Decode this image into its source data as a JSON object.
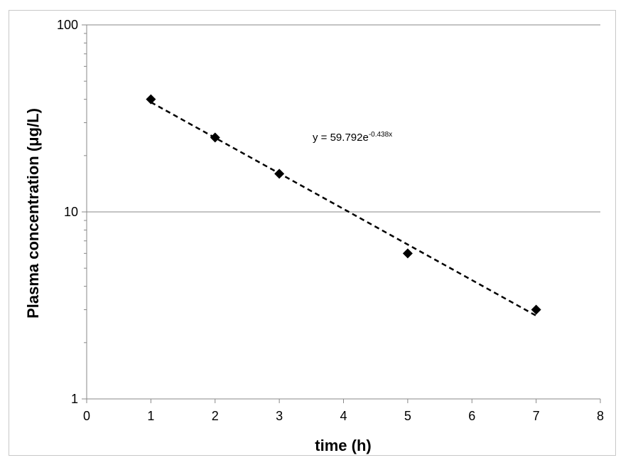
{
  "chart_data": {
    "type": "scatter",
    "xlabel": "time (h)",
    "ylabel": "Plasma concentration (μg/L)",
    "xlim": [
      0,
      8
    ],
    "ylim": [
      1,
      100
    ],
    "yscale": "log",
    "grid": "horizontal major gridlines",
    "legend": "none",
    "x_ticks": [
      "0",
      "1",
      "2",
      "3",
      "4",
      "5",
      "6",
      "7",
      "8"
    ],
    "y_ticks": [
      "1",
      "10",
      "100"
    ],
    "points": [
      {
        "x": 1,
        "y": 40
      },
      {
        "x": 2,
        "y": 25
      },
      {
        "x": 3,
        "y": 16
      },
      {
        "x": 5,
        "y": 6
      },
      {
        "x": 7,
        "y": 3
      }
    ],
    "trendline": {
      "type": "exponential",
      "a": 59.792,
      "b": -0.438,
      "x_range": [
        1,
        7
      ],
      "style": "dashed",
      "equation_prefix": "y = 59.792e",
      "equation_exponent": "-0.438x"
    },
    "marker": "diamond",
    "colors": {
      "marker": "#000000",
      "trendline": "#000000",
      "grid": "#888888",
      "axis": "#888888"
    }
  }
}
